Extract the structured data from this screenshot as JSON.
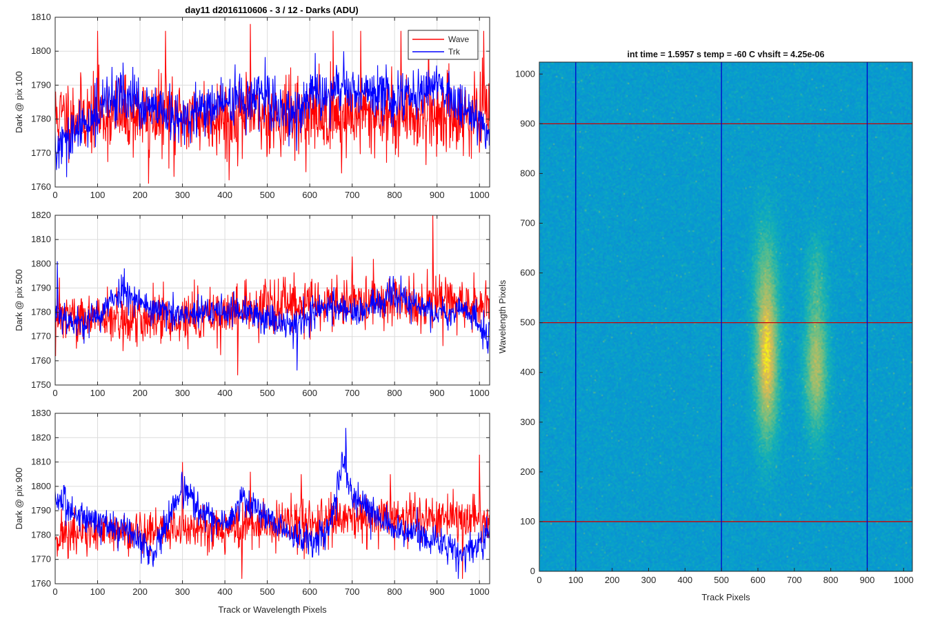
{
  "figure_title": "day11 d2016110606 - 3 / 12 - Darks (ADU)",
  "legend": [
    "Wave",
    "Trk"
  ],
  "colors": {
    "wave": "#ff0000",
    "trk": "#0000ff",
    "marker_h": "#cc0000",
    "marker_v": "#0000cc"
  },
  "chart_data": [
    {
      "type": "line",
      "ylabel": "Dark @ pix 100",
      "xlim": [
        0,
        1024
      ],
      "ylim": [
        1760,
        1810
      ],
      "xticks": [
        0,
        100,
        200,
        300,
        400,
        500,
        600,
        700,
        800,
        900,
        1000
      ],
      "yticks": [
        1760,
        1770,
        1780,
        1790,
        1800,
        1810
      ],
      "grid": true,
      "legend_position": "top-right",
      "series": [
        {
          "name": "Wave",
          "color": "#ff0000",
          "mean": 1781,
          "noise": 6.5,
          "seed": 11,
          "x": [
            0,
            1024
          ],
          "anchors": [],
          "spikes": [
            [
              100,
              1806
            ],
            [
              260,
              1806
            ],
            [
              460,
              1808
            ],
            [
              655,
              1806
            ],
            [
              720,
              1806
            ],
            [
              815,
              1806
            ],
            [
              880,
              1806
            ],
            [
              1010,
              1806
            ],
            [
              220,
              1761
            ],
            [
              280,
              1763
            ],
            [
              410,
              1762
            ],
            [
              675,
              1764
            ]
          ]
        },
        {
          "name": "Trk",
          "color": "#0000ff",
          "mean": 1782,
          "noise": 4.5,
          "seed": 29,
          "x": [
            0,
            1024
          ],
          "anchors": [
            [
              0,
              1771
            ],
            [
              30,
              1773
            ],
            [
              80,
              1780
            ],
            [
              150,
              1788
            ],
            [
              200,
              1784
            ],
            [
              300,
              1779
            ],
            [
              350,
              1783
            ],
            [
              400,
              1785
            ],
            [
              500,
              1786
            ],
            [
              560,
              1781
            ],
            [
              600,
              1786
            ],
            [
              700,
              1789
            ],
            [
              800,
              1786
            ],
            [
              900,
              1790
            ],
            [
              960,
              1784
            ],
            [
              1024,
              1777
            ]
          ],
          "spikes": [
            [
              3,
              1765
            ],
            [
              680,
              1800
            ]
          ]
        }
      ]
    },
    {
      "type": "line",
      "ylabel": "Dark @ pix 500",
      "xlim": [
        0,
        1024
      ],
      "ylim": [
        1750,
        1820
      ],
      "xticks": [
        0,
        100,
        200,
        300,
        400,
        500,
        600,
        700,
        800,
        900,
        1000
      ],
      "yticks": [
        1750,
        1760,
        1770,
        1780,
        1790,
        1800,
        1810,
        1820
      ],
      "grid": true,
      "series": [
        {
          "name": "Wave",
          "color": "#ff0000",
          "mean": 1779,
          "noise": 6,
          "seed": 47,
          "x": [
            0,
            1024
          ],
          "anchors": [
            [
              0,
              1778
            ],
            [
              300,
              1777
            ],
            [
              500,
              1782
            ],
            [
              700,
              1784
            ],
            [
              1024,
              1783
            ]
          ],
          "spikes": [
            [
              430,
              1754
            ],
            [
              890,
              1820
            ],
            [
              700,
              1803
            ],
            [
              750,
              1802
            ],
            [
              50,
              1765
            ],
            [
              160,
              1764
            ]
          ]
        },
        {
          "name": "Trk",
          "color": "#0000ff",
          "mean": 1780,
          "noise": 4,
          "seed": 53,
          "x": [
            0,
            1024
          ],
          "anchors": [
            [
              0,
              1781
            ],
            [
              50,
              1775
            ],
            [
              100,
              1778
            ],
            [
              160,
              1790
            ],
            [
              220,
              1782
            ],
            [
              300,
              1778
            ],
            [
              400,
              1781
            ],
            [
              500,
              1778
            ],
            [
              560,
              1775
            ],
            [
              650,
              1783
            ],
            [
              720,
              1780
            ],
            [
              800,
              1787
            ],
            [
              900,
              1779
            ],
            [
              960,
              1782
            ],
            [
              1024,
              1770
            ]
          ],
          "spikes": [
            [
              5,
              1801
            ],
            [
              570,
              1756
            ],
            [
              1020,
              1763
            ]
          ]
        }
      ]
    },
    {
      "type": "line",
      "ylabel": "Dark @ pix 900",
      "xlabel": "Track or Wavelength Pixels",
      "xlim": [
        0,
        1024
      ],
      "ylim": [
        1760,
        1830
      ],
      "xticks": [
        0,
        100,
        200,
        300,
        400,
        500,
        600,
        700,
        800,
        900,
        1000
      ],
      "yticks": [
        1760,
        1770,
        1780,
        1790,
        1800,
        1810,
        1820,
        1830
      ],
      "grid": true,
      "series": [
        {
          "name": "Wave",
          "color": "#ff0000",
          "mean": 1781,
          "noise": 5.5,
          "seed": 71,
          "x": [
            0,
            1024
          ],
          "anchors": [
            [
              0,
              1780
            ],
            [
              500,
              1784
            ],
            [
              800,
              1787
            ],
            [
              1024,
              1786
            ]
          ],
          "spikes": [
            [
              300,
              1810
            ],
            [
              460,
              1806
            ],
            [
              580,
              1805
            ],
            [
              790,
              1805
            ],
            [
              1000,
              1813
            ],
            [
              440,
              1762
            ],
            [
              960,
              1762
            ]
          ]
        },
        {
          "name": "Trk",
          "color": "#0000ff",
          "mean": 1784,
          "noise": 4,
          "seed": 83,
          "x": [
            0,
            1024
          ],
          "anchors": [
            [
              0,
              1796
            ],
            [
              30,
              1790
            ],
            [
              100,
              1786
            ],
            [
              200,
              1778
            ],
            [
              230,
              1772
            ],
            [
              300,
              1800
            ],
            [
              340,
              1790
            ],
            [
              400,
              1783
            ],
            [
              440,
              1795
            ],
            [
              480,
              1790
            ],
            [
              520,
              1784
            ],
            [
              600,
              1777
            ],
            [
              650,
              1785
            ],
            [
              680,
              1812
            ],
            [
              700,
              1795
            ],
            [
              740,
              1790
            ],
            [
              800,
              1782
            ],
            [
              900,
              1778
            ],
            [
              960,
              1772
            ],
            [
              1024,
              1780
            ]
          ],
          "spikes": [
            [
              685,
              1824
            ],
            [
              950,
              1762
            ]
          ]
        }
      ]
    },
    {
      "type": "heatmap",
      "title": "int time = 1.5957 s    temp = -60 C    vhsift = 4.25e-06",
      "xlabel": "Track Pixels",
      "ylabel": "Wavelength Pixels",
      "xlim": [
        0,
        1024
      ],
      "ylim": [
        0,
        1024
      ],
      "xticks": [
        0,
        100,
        200,
        300,
        400,
        500,
        600,
        700,
        800,
        900,
        1000
      ],
      "yticks": [
        0,
        100,
        200,
        300,
        400,
        500,
        600,
        700,
        800,
        900,
        1000
      ],
      "colormap": "parula",
      "hot_regions": [
        {
          "x": 625,
          "y": 420,
          "sx": 22,
          "sy": 110,
          "amp": 0.45
        },
        {
          "x": 760,
          "y": 410,
          "sx": 22,
          "sy": 90,
          "amp": 0.35
        },
        {
          "x": 620,
          "y": 600,
          "sx": 25,
          "sy": 90,
          "amp": 0.15
        },
        {
          "x": 760,
          "y": 600,
          "sx": 20,
          "sy": 60,
          "amp": 0.12
        }
      ],
      "marker_rows": [
        100,
        500,
        900
      ],
      "marker_cols": [
        100,
        500,
        900
      ]
    }
  ]
}
